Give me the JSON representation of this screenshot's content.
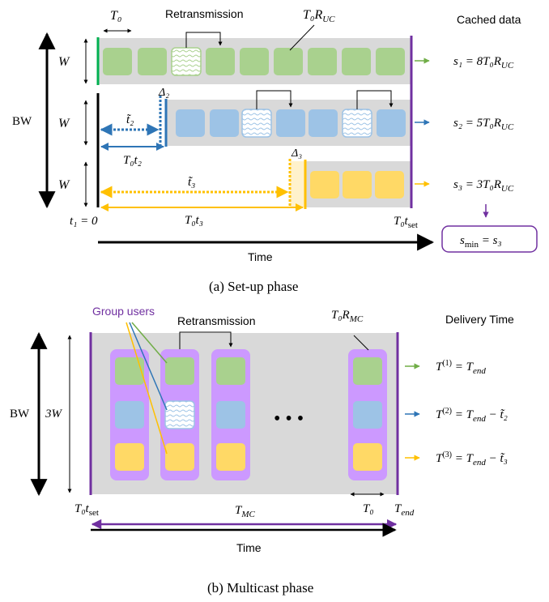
{
  "colors": {
    "green": "#00b050",
    "green_fill": "#a9d18e",
    "blue": "#2e75b6",
    "blue_fill": "#9dc3e6",
    "yellow": "#ffc000",
    "yellow_fill": "#ffd966",
    "purple": "#7030a0",
    "purple_fill": "#cc99ff",
    "gray": "#d9d9d9",
    "black": "#000000"
  },
  "setup": {
    "t0_label": "T₀",
    "retransmission_label": "Retransmission",
    "t0_ruc_label": "T₀R",
    "t0_ruc_sub": "UC",
    "cached_data_label": "Cached data",
    "bw_label": "BW",
    "w_label": "W",
    "delta2": "Δ₂",
    "delta3": "Δ₃",
    "t2_tilde": "t̃₂",
    "t3_tilde": "t̃₃",
    "t0t2": "T₀t₂",
    "t0t3": "T₀t₃",
    "t1_zero": "t₁ = 0",
    "t0_tset_main": "T₀t",
    "t0_tset_sub": "set",
    "s1_main": "s₁ = 8T₀R",
    "s1_sub": "UC",
    "s2_main": "s₂ = 5T₀R",
    "s2_sub": "UC",
    "s3_main": "s₃ = 3T₀R",
    "s3_sub": "UC",
    "smin_a": "s",
    "smin_sub": "min",
    "smin_b": " = s₃",
    "time_label": "Time",
    "caption": "(a) Set-up phase"
  },
  "multicast": {
    "group_users_label": "Group users",
    "retransmission_label": "Retransmission",
    "t0_rmc_label": "T₀R",
    "t0_rmc_sub": "MC",
    "delivery_time_label": "Delivery Time",
    "bw_label": "BW",
    "three_w_label": "3W",
    "ellipsis": "•  •  •",
    "d1_a": "T",
    "d1_sup": "(1)",
    "d1_b": " = T",
    "d1_sub": "end",
    "d2_a": "T",
    "d2_sup": "(2)",
    "d2_b": " = T",
    "d2_sub": "end",
    "d2_c": " − t̃₂",
    "d3_a": "T",
    "d3_sup": "(3)",
    "d3_b": " = T",
    "d3_sub": "end",
    "d3_c": " − t̃₃",
    "t0_tset_main": "T₀t",
    "t0_tset_sub": "set",
    "tmc_main": "T",
    "tmc_sub": "MC",
    "t0_label": "T₀",
    "tend_main": "T",
    "tend_sub": "end",
    "time_label": "Time",
    "caption": "(b) Multicast phase"
  }
}
